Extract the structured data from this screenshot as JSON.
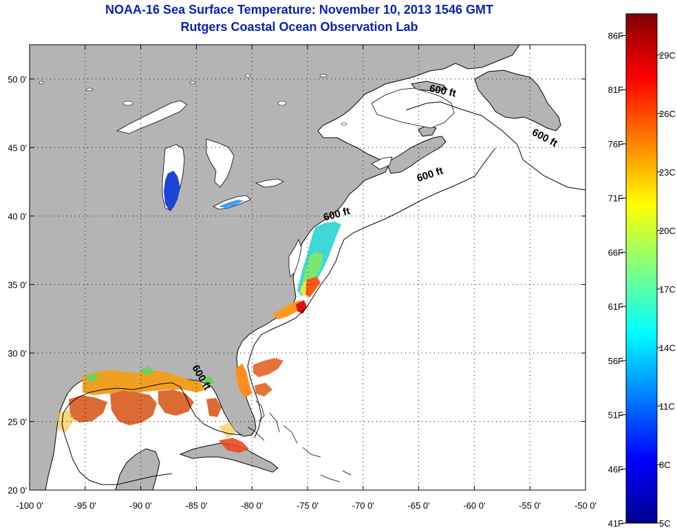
{
  "header": {
    "title": "NOAA-16 Sea Surface Temperature:  November 10, 2013 1546 GMT",
    "subtitle": "Rutgers Coastal Ocean Observation Lab"
  },
  "map": {
    "lon_range": [
      -100,
      -50
    ],
    "lat_range": [
      20,
      52.5
    ],
    "grid": true,
    "lon_ticks": [
      {
        "v": -100,
        "label": "-100 0'"
      },
      {
        "v": -95,
        "label": "-95 0'"
      },
      {
        "v": -90,
        "label": "-90 0'"
      },
      {
        "v": -85,
        "label": "-85 0'"
      },
      {
        "v": -80,
        "label": "-80 0'"
      },
      {
        "v": -75,
        "label": "-75 0'"
      },
      {
        "v": -70,
        "label": "-70 0'"
      },
      {
        "v": -65,
        "label": "-65 0'"
      },
      {
        "v": -60,
        "label": "-60 0'"
      },
      {
        "v": -55,
        "label": "-55 0'"
      },
      {
        "v": -50,
        "label": "-50 0'"
      }
    ],
    "lat_ticks": [
      {
        "v": 20,
        "label": "20 0'"
      },
      {
        "v": 25,
        "label": "25 0'"
      },
      {
        "v": 30,
        "label": "30 0'"
      },
      {
        "v": 35,
        "label": "35 0'"
      },
      {
        "v": 40,
        "label": "40 0'"
      },
      {
        "v": 45,
        "label": "45 0'"
      },
      {
        "v": 50,
        "label": "50 0'"
      }
    ],
    "isobath_labels": [
      {
        "text": "600 ft",
        "lon": -62.9,
        "lat": 48.9,
        "rotate": 12
      },
      {
        "text": "600 ft",
        "lon": -53.8,
        "lat": 45.5,
        "rotate": 28
      },
      {
        "text": "600 ft",
        "lon": -63.9,
        "lat": 42.8,
        "rotate": -18
      },
      {
        "text": "600 ft",
        "lon": -72.3,
        "lat": 39.9,
        "rotate": -15
      },
      {
        "text": "600 ft",
        "lon": -84.8,
        "lat": 28.1,
        "rotate": 60
      }
    ],
    "colors": {
      "land": "#b4b4b4",
      "water": "#ffffff",
      "coast": "#000000",
      "grid": "#000000"
    }
  },
  "colorbar": {
    "min_f": 41,
    "max_f": 88,
    "f_labels": [
      {
        "v": 41,
        "label": "41F"
      },
      {
        "v": 46,
        "label": "46F"
      },
      {
        "v": 51,
        "label": "51F"
      },
      {
        "v": 56,
        "label": "56F"
      },
      {
        "v": 61,
        "label": "61F"
      },
      {
        "v": 66,
        "label": "66F"
      },
      {
        "v": 71,
        "label": "71F"
      },
      {
        "v": 76,
        "label": "76F"
      },
      {
        "v": 81,
        "label": "81F"
      },
      {
        "v": 86,
        "label": "86F"
      }
    ],
    "c_labels": [
      {
        "v": 5,
        "label": "5C"
      },
      {
        "v": 8,
        "label": "8C"
      },
      {
        "v": 11,
        "label": "11C"
      },
      {
        "v": 14,
        "label": "14C"
      },
      {
        "v": 17,
        "label": "17C"
      },
      {
        "v": 20,
        "label": "20C"
      },
      {
        "v": 23,
        "label": "23C"
      },
      {
        "v": 26,
        "label": "26C"
      },
      {
        "v": 29,
        "label": "29C"
      }
    ],
    "colormap": [
      "#00008f",
      "#0000ff",
      "#0080ff",
      "#00ffff",
      "#80ff80",
      "#ffff00",
      "#ff8000",
      "#ff0000",
      "#800000"
    ]
  }
}
